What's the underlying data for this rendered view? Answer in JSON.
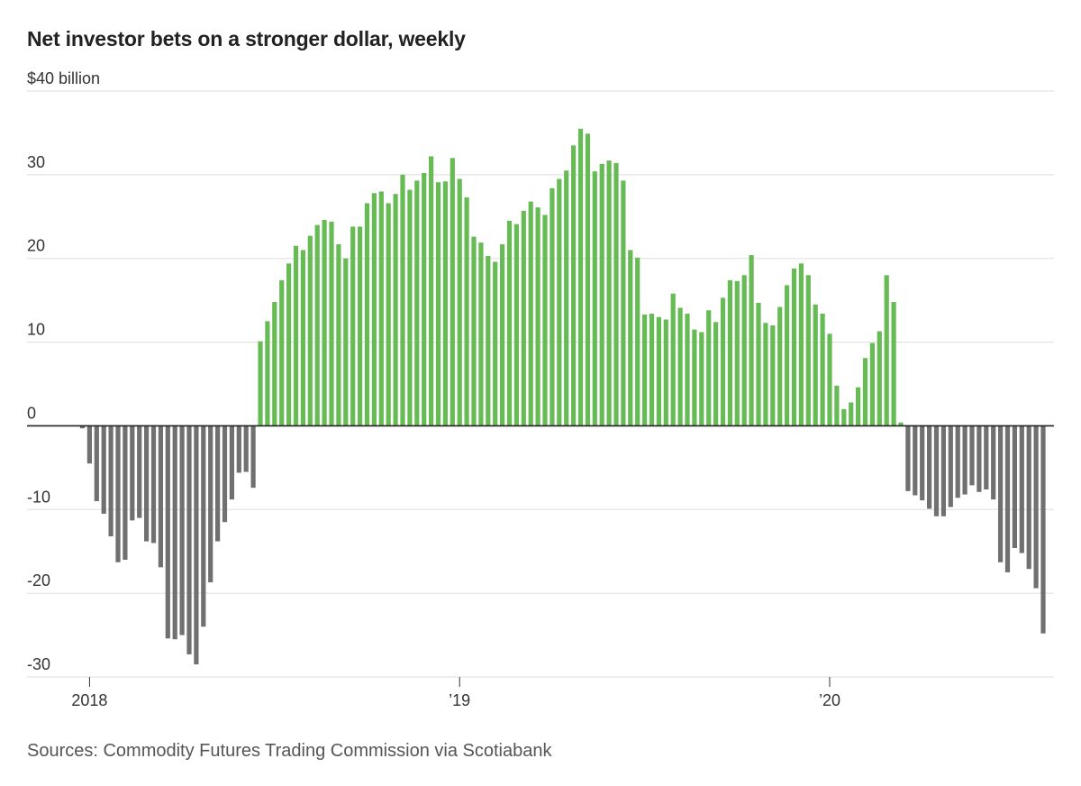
{
  "title": "Net investor bets on a stronger dollar, weekly",
  "source": "Sources: Commodity Futures Trading Commission via Scotiabank",
  "colors": {
    "positive": "#66bb55",
    "negative": "#707070",
    "grid": "#dddddd",
    "zero_line": "#222222"
  },
  "chart_data": {
    "type": "bar",
    "title": "Net investor bets on a stronger dollar, weekly",
    "ylabel": "",
    "ylim": [
      -30,
      40
    ],
    "y_ticks": [
      {
        "value": 40,
        "label": "$40 billion"
      },
      {
        "value": 30,
        "label": "30"
      },
      {
        "value": 20,
        "label": "20"
      },
      {
        "value": 10,
        "label": "10"
      },
      {
        "value": 0,
        "label": "0"
      },
      {
        "value": -10,
        "label": "-10"
      },
      {
        "value": -20,
        "label": "-20"
      },
      {
        "value": -30,
        "label": "-30"
      }
    ],
    "x_ticks": [
      {
        "index": 1,
        "label": "2018"
      },
      {
        "index": 53,
        "label": "’19"
      },
      {
        "index": 105,
        "label": "’20"
      }
    ],
    "grid": true,
    "legend": "none",
    "frequency": "weekly",
    "values": [
      -0.3,
      -4.5,
      -9.0,
      -10.5,
      -13.2,
      -16.3,
      -16.0,
      -11.3,
      -11.0,
      -13.8,
      -14.0,
      -16.9,
      -25.4,
      -25.5,
      -25.0,
      -27.3,
      -28.5,
      -24.0,
      -18.7,
      -13.8,
      -11.5,
      -8.8,
      -5.6,
      -5.5,
      -7.4,
      10.1,
      12.5,
      14.8,
      17.4,
      19.4,
      21.5,
      21.0,
      22.7,
      24.0,
      24.6,
      24.4,
      21.7,
      20.0,
      23.8,
      23.8,
      26.6,
      27.8,
      28.0,
      26.6,
      27.7,
      30.0,
      28.2,
      29.3,
      30.2,
      32.2,
      29.1,
      29.2,
      32.0,
      29.5,
      27.3,
      22.6,
      21.9,
      20.3,
      19.6,
      21.7,
      24.5,
      24.1,
      25.7,
      26.8,
      26.1,
      25.2,
      28.4,
      29.5,
      30.5,
      33.5,
      35.5,
      34.9,
      30.4,
      31.3,
      31.7,
      31.4,
      29.3,
      21.0,
      20.1,
      13.3,
      13.4,
      13.0,
      12.7,
      15.8,
      14.1,
      13.4,
      11.5,
      11.2,
      13.8,
      12.4,
      15.3,
      17.4,
      17.3,
      18.0,
      20.4,
      14.7,
      12.3,
      12.0,
      14.2,
      16.8,
      18.8,
      19.4,
      18.0,
      14.5,
      13.4,
      11.0,
      4.8,
      2.0,
      2.8,
      4.6,
      8.1,
      9.9,
      11.3,
      18.0,
      14.8,
      0.4,
      -7.8,
      -8.3,
      -8.9,
      -9.9,
      -10.8,
      -10.8,
      -9.7,
      -8.6,
      -8.2,
      -7.1,
      -7.9,
      -7.6,
      -8.8,
      -16.3,
      -17.5,
      -14.6,
      -15.2,
      -17.1,
      -19.4,
      -24.8
    ]
  }
}
